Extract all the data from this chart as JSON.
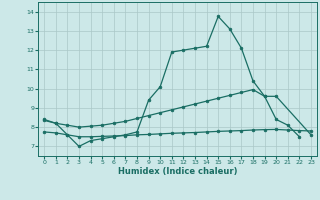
{
  "xlabel": "Humidex (Indice chaleur)",
  "bg_color": "#cce8e8",
  "line_color": "#1a6e64",
  "grid_color": "#aac8c8",
  "xlim": [
    -0.5,
    23.5
  ],
  "ylim": [
    6.5,
    14.5
  ],
  "yticks": [
    7,
    8,
    9,
    10,
    11,
    12,
    13,
    14
  ],
  "xticks": [
    0,
    1,
    2,
    3,
    4,
    5,
    6,
    7,
    8,
    9,
    10,
    11,
    12,
    13,
    14,
    15,
    16,
    17,
    18,
    19,
    20,
    21,
    22,
    23
  ],
  "line1_x": [
    0,
    1,
    2,
    3,
    4,
    5,
    6,
    7,
    8,
    9,
    10,
    11,
    12,
    13,
    14,
    15,
    16,
    17,
    18,
    19,
    20,
    21,
    22
  ],
  "line1_y": [
    8.4,
    8.2,
    7.6,
    7.0,
    7.3,
    7.4,
    7.5,
    7.6,
    7.75,
    9.4,
    10.1,
    11.9,
    12.0,
    12.1,
    12.2,
    13.75,
    13.1,
    12.1,
    10.4,
    9.6,
    8.4,
    8.1,
    7.5
  ],
  "line2_x": [
    0,
    1,
    2,
    3,
    4,
    5,
    6,
    7,
    8,
    9,
    10,
    11,
    12,
    13,
    14,
    15,
    16,
    17,
    18,
    19,
    20,
    23
  ],
  "line2_y": [
    8.35,
    8.2,
    8.1,
    8.0,
    8.05,
    8.1,
    8.2,
    8.3,
    8.45,
    8.6,
    8.75,
    8.9,
    9.05,
    9.2,
    9.35,
    9.5,
    9.65,
    9.8,
    9.95,
    9.6,
    9.6,
    7.6
  ],
  "line3_x": [
    0,
    1,
    2,
    3,
    4,
    5,
    6,
    7,
    8,
    9,
    10,
    11,
    12,
    13,
    14,
    15,
    16,
    17,
    18,
    19,
    20,
    21,
    22,
    23
  ],
  "line3_y": [
    7.75,
    7.7,
    7.6,
    7.5,
    7.5,
    7.52,
    7.54,
    7.56,
    7.6,
    7.62,
    7.65,
    7.68,
    7.7,
    7.72,
    7.75,
    7.78,
    7.8,
    7.82,
    7.85,
    7.87,
    7.88,
    7.85,
    7.82,
    7.8
  ]
}
